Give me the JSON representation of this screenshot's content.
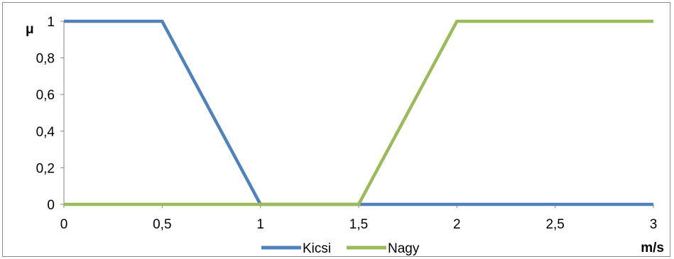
{
  "chart_data": {
    "type": "line",
    "ylabel": "μ",
    "xlabel": "m/s",
    "x_ticks": [
      "0",
      "0,5",
      "1",
      "1,5",
      "2",
      "2,5",
      "3"
    ],
    "y_ticks": [
      "0",
      "0,2",
      "0,4",
      "0,6",
      "0,8",
      "1"
    ],
    "x_tick_values": [
      0,
      0.5,
      1,
      1.5,
      2,
      2.5,
      3
    ],
    "y_tick_values": [
      0,
      0.2,
      0.4,
      0.6,
      0.8,
      1
    ],
    "xlim": [
      0,
      3
    ],
    "ylim": [
      0,
      1
    ],
    "grid": false,
    "legend_position": "bottom",
    "series": [
      {
        "name": "Kicsi",
        "color": "#4f81bd",
        "x": [
          0,
          0.5,
          1,
          1.5,
          2,
          2.5,
          3
        ],
        "y": [
          1,
          1,
          0,
          0,
          0,
          0,
          0
        ]
      },
      {
        "name": "Nagy",
        "color": "#9bbb59",
        "x": [
          0,
          0.5,
          1,
          1.5,
          2,
          2.5,
          3
        ],
        "y": [
          0,
          0,
          0,
          0,
          1,
          1,
          1
        ]
      }
    ]
  }
}
